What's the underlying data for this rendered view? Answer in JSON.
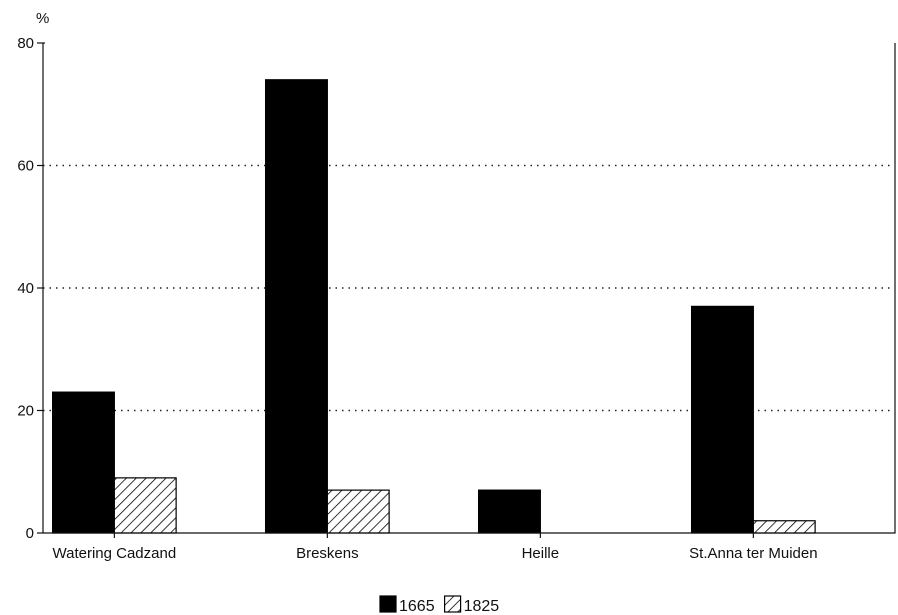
{
  "chart_data": {
    "type": "bar",
    "ylabel": "%",
    "ylim": [
      0,
      80
    ],
    "yticks": [
      0,
      20,
      40,
      60,
      80
    ],
    "grid": true,
    "legend_position": "bottom-center",
    "categories": [
      "Watering Cadzand",
      "Breskens",
      "Heille",
      "St.Anna ter Muiden"
    ],
    "series": [
      {
        "name": "1665",
        "values": [
          23,
          74,
          7,
          37
        ],
        "fill": "solid",
        "color": "#000000"
      },
      {
        "name": "1825",
        "values": [
          9,
          7,
          0,
          2
        ],
        "fill": "hatched",
        "color": "#000000"
      }
    ]
  }
}
